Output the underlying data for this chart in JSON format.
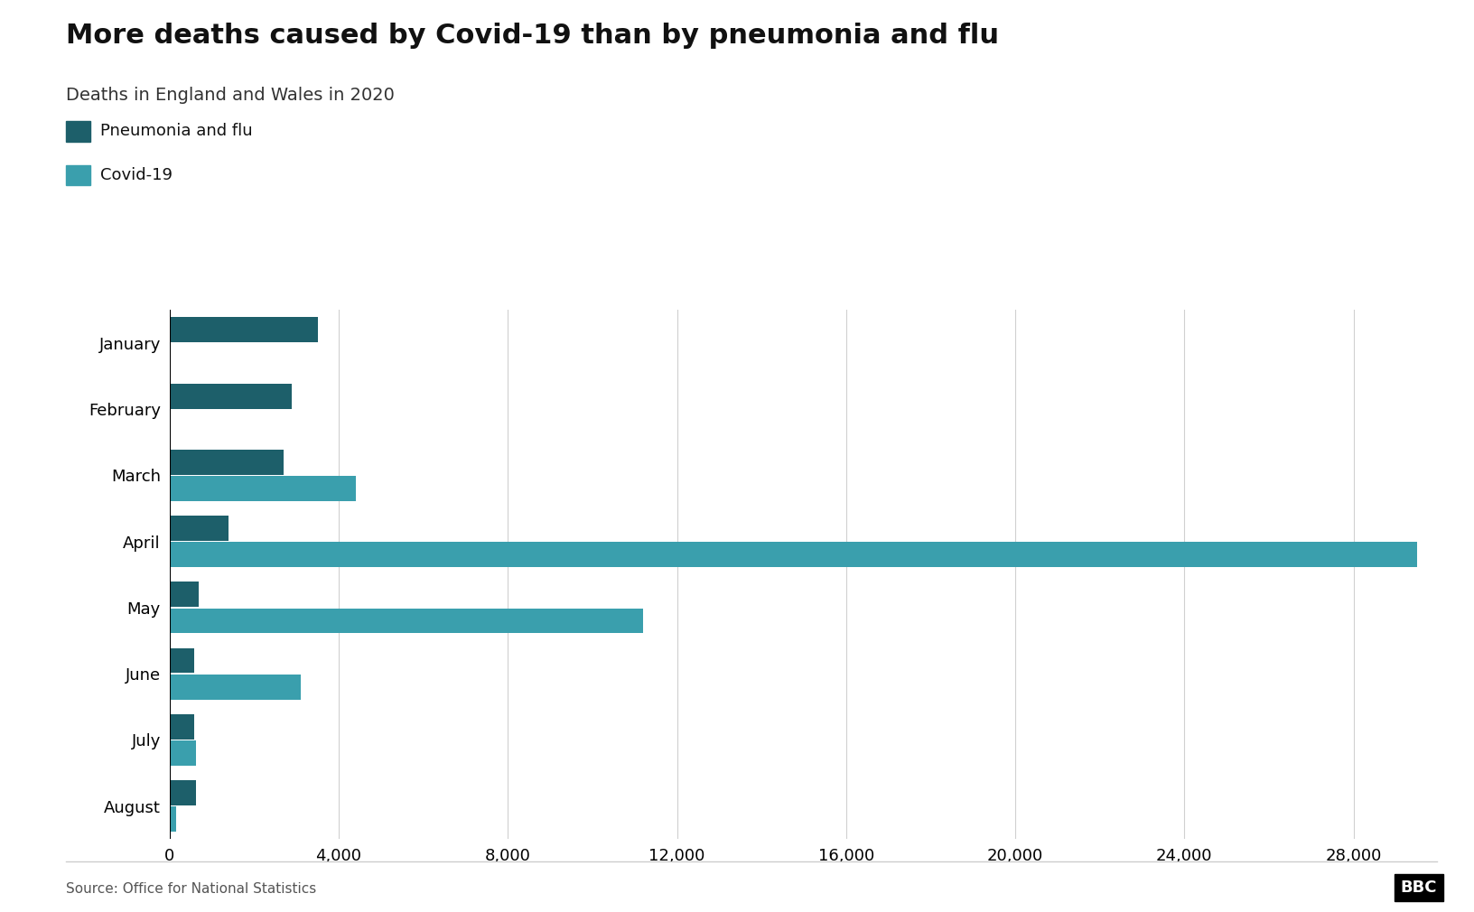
{
  "title": "More deaths caused by Covid-19 than by pneumonia and flu",
  "subtitle": "Deaths in England and Wales in 2020",
  "source": "Source: Office for National Statistics",
  "months": [
    "January",
    "February",
    "March",
    "April",
    "May",
    "June",
    "July",
    "August"
  ],
  "pneumonia_flu": [
    3500,
    2900,
    2700,
    1400,
    680,
    580,
    580,
    620
  ],
  "covid19": [
    0,
    0,
    4400,
    29500,
    11200,
    3100,
    620,
    150
  ],
  "color_pneumonia": "#1d5f6a",
  "color_covid": "#3a9fad",
  "xlim": [
    0,
    30500
  ],
  "xticks": [
    0,
    4000,
    8000,
    12000,
    16000,
    20000,
    24000,
    28000
  ],
  "xtick_labels": [
    "0",
    "4,000",
    "8,000",
    "12,000",
    "16,000",
    "20,000",
    "24,000",
    "28,000"
  ],
  "title_fontsize": 22,
  "subtitle_fontsize": 14,
  "legend_fontsize": 13,
  "tick_fontsize": 13,
  "background_color": "#ffffff",
  "bbc_logo_text": "BBC"
}
